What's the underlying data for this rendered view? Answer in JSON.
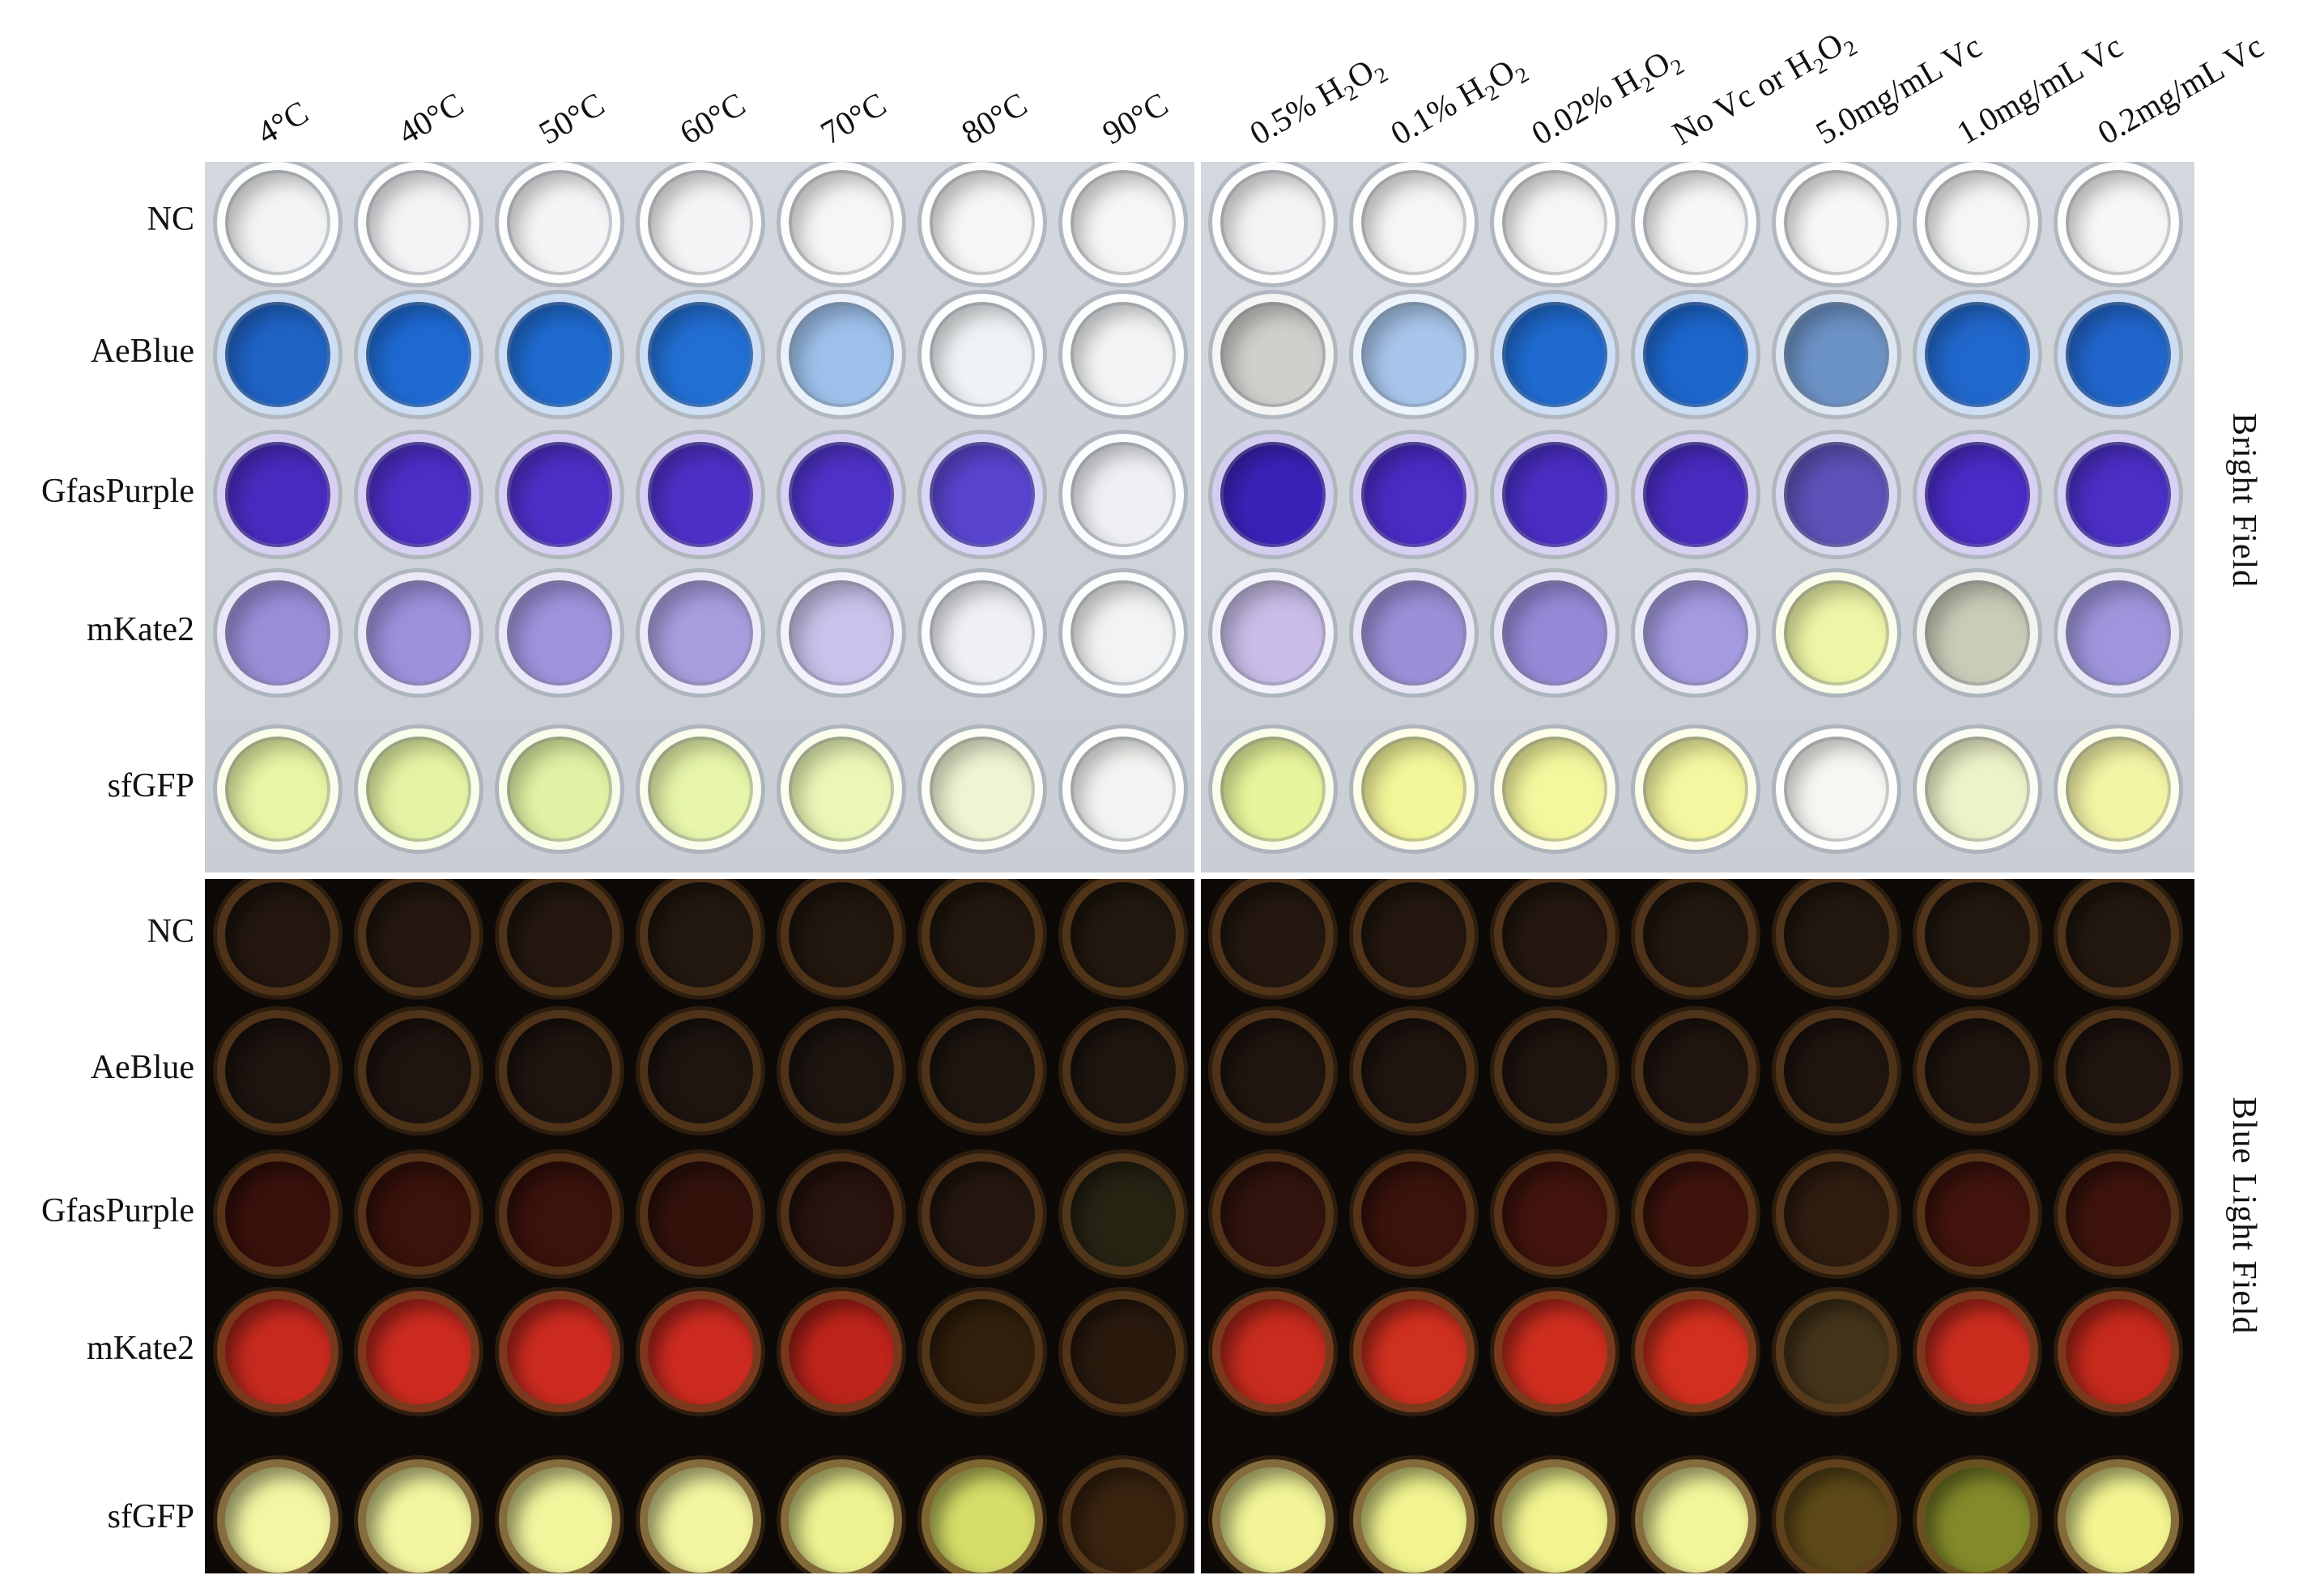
{
  "temperature_columns": [
    "4°C",
    "40°C",
    "50°C",
    "60°C",
    "70°C",
    "80°C",
    "90°C"
  ],
  "treatment_columns": [
    {
      "pre": "0.5% H",
      "sub1": "2",
      "mid": "O",
      "sub2": "2",
      "post": ""
    },
    {
      "pre": "0.1% H",
      "sub1": "2",
      "mid": "O",
      "sub2": "2",
      "post": ""
    },
    {
      "pre": "0.02% H",
      "sub1": "2",
      "mid": "O",
      "sub2": "2",
      "post": ""
    },
    {
      "pre": "No Vc or H",
      "sub1": "2",
      "mid": "O",
      "sub2": "2",
      "post": ""
    },
    {
      "pre": "5.0mg/mL Vc",
      "sub1": "",
      "mid": "",
      "sub2": "",
      "post": ""
    },
    {
      "pre": "1.0mg/mL Vc",
      "sub1": "",
      "mid": "",
      "sub2": "",
      "post": ""
    },
    {
      "pre": "0.2mg/mL Vc",
      "sub1": "",
      "mid": "",
      "sub2": "",
      "post": ""
    }
  ],
  "rows": [
    "NC",
    "AeBlue",
    "GfasPurple",
    "mKate2",
    "sfGFP"
  ],
  "side_labels": {
    "bright": "Bright Field",
    "blue": "Blue Light Field"
  },
  "colors": {
    "bright_temp": [
      [
        "#f2f4f5",
        "#f3f4f6",
        "#f4f5f6",
        "#f4f5f6",
        "#f5f6f6",
        "#f5f6f6",
        "#f5f6f6"
      ],
      [
        "#1f63c6",
        "#1e6ad2",
        "#1f6bd0",
        "#226fd3",
        "#9ec1ec",
        "#f0f3f5",
        "#f2f4f5"
      ],
      [
        "#4a2bc0",
        "#4d2ec6",
        "#4e2fc7",
        "#4f30c7",
        "#4f33c9",
        "#5945cf",
        "#eef0f3"
      ],
      [
        "#9b8ed9",
        "#9e90dc",
        "#9f93dd",
        "#a89ddf",
        "#c8c3ea",
        "#eef0f3",
        "#f1f3f4"
      ],
      [
        "#e7f5a6",
        "#e5f4a4",
        "#e1f2a4",
        "#e7f6ab",
        "#eaf7b6",
        "#eff5d3",
        "#f3f5f2"
      ]
    ],
    "bright_treat": [
      [
        "#f3f4f5",
        "#f5f6f6",
        "#f5f6f6",
        "#f6f7f7",
        "#f6f7f7",
        "#f5f6f6",
        "#f6f7f7"
      ],
      [
        "#cfcfcb",
        "#a8c6ec",
        "#1f6bd0",
        "#1c66cc",
        "#6c93c6",
        "#2168cc",
        "#2166cc"
      ],
      [
        "#3a22b8",
        "#4a2bc4",
        "#4a2ec4",
        "#482cc0",
        "#5e51b8",
        "#4a2bc6",
        "#4b2fc6"
      ],
      [
        "#c9bde8",
        "#9b8fd8",
        "#9689d8",
        "#a39ae0",
        "#eef5a6",
        "#c9cdb8",
        "#9e95dc"
      ],
      [
        "#e9f59c",
        "#f4f69a",
        "#f5f79e",
        "#f4f6a0",
        "#f6f7f2",
        "#eef2c9",
        "#f4f4a6"
      ]
    ],
    "blue_temp": [
      [
        "#231710",
        "#241810",
        "#241810",
        "#231810",
        "#22170f",
        "#23180f",
        "#22180f"
      ],
      [
        "#1e1410",
        "#1f1410",
        "#1f1510",
        "#1e1510",
        "#1d1510",
        "#1f1610",
        "#1f1610"
      ],
      [
        "#3a110c",
        "#3b120c",
        "#3b120c",
        "#33120c",
        "#28130e",
        "#251710",
        "#282414"
      ],
      [
        "#c82a1f",
        "#cd2b20",
        "#cd2b20",
        "#cd2b20",
        "#bd241b",
        "#33200c",
        "#2a1a0e"
      ],
      [
        "#f5f6a4",
        "#f3f5a0",
        "#f3f59d",
        "#f4f5a0",
        "#eef291",
        "#d6dd68",
        "#3a2410"
      ]
    ],
    "blue_treat": [
      [
        "#241810",
        "#241810",
        "#241810",
        "#231810",
        "#231810",
        "#231810",
        "#231810"
      ],
      [
        "#201510",
        "#201510",
        "#201510",
        "#201510",
        "#201510",
        "#201510",
        "#201510"
      ],
      [
        "#33140e",
        "#3b130d",
        "#42140d",
        "#40140d",
        "#301d10",
        "#42140d",
        "#3e140d"
      ],
      [
        "#c82c1e",
        "#d0301f",
        "#cf2e1f",
        "#d2301f",
        "#44341a",
        "#cc2d1f",
        "#c52a1c"
      ],
      [
        "#f2f497",
        "#f1f48f",
        "#f1f48f",
        "#f3f59a",
        "#5e4a18",
        "#838a2a",
        "#f3f592"
      ]
    ]
  }
}
